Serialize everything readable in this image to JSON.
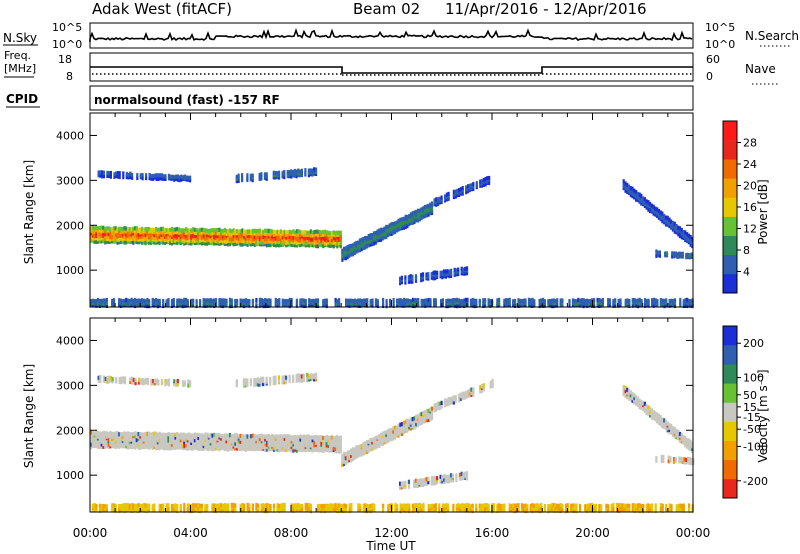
{
  "header": {
    "station": "Adak West (fitACF)",
    "beam": "Beam 02",
    "dates": "11/Apr/2016 - 12/Apr/2016"
  },
  "top_panels": {
    "nsky_label": "N.Sky",
    "nsky_ticks": [
      "10^5",
      "10^0"
    ],
    "nsearch_label": "N.Search",
    "nsearch_ticks": [
      "10^5",
      "10^0"
    ],
    "freq_label": "Freq.",
    "freq_unit": "[MHz]",
    "freq_ticks": [
      "18",
      "8"
    ],
    "nave_label": "Nave",
    "nave_ticks": [
      "60",
      "0"
    ],
    "cpid_label": "CPID",
    "cpid_text": "normalsound (fast) -157 RF"
  },
  "colors": {
    "power": [
      "#1a2fd6",
      "#2f5fb0",
      "#2e8b57",
      "#66c233",
      "#e6c800",
      "#f2a000",
      "#f06a00",
      "#e8281c",
      "#ff1a1a"
    ],
    "velocity": [
      "#1a2fd6",
      "#2f5fb0",
      "#2e8b57",
      "#66c233",
      "#c8c8c0",
      "#e6c800",
      "#f2a000",
      "#f06a00",
      "#e8281c"
    ],
    "ground": "#c8c8c0"
  },
  "chart_data": [
    {
      "type": "heatmap",
      "name": "power",
      "ylabel": "Slant Range [km]",
      "xlabel": "",
      "x_ticks": [
        "00:00",
        "04:00",
        "08:00",
        "12:00",
        "16:00",
        "20:00",
        "00:00"
      ],
      "y_ticks": [
        "1000",
        "2000",
        "3000",
        "4000"
      ],
      "xlim_hours": [
        0,
        24
      ],
      "ylim_km": [
        180,
        4500
      ],
      "colorbar_label": "Power [dB]",
      "colorbar_ticks": [
        "4",
        "8",
        "12",
        "16",
        "20",
        "24",
        "28"
      ],
      "colorbar_range": [
        0,
        32
      ],
      "echo_bands": [
        {
          "t0": 0.0,
          "t1": 10.0,
          "center_start": 1800,
          "center_end": 1700,
          "width": 350,
          "peak_db": 28
        },
        {
          "t0": 10.0,
          "t1": 13.6,
          "center_start": 1350,
          "center_end": 2400,
          "width": 250,
          "peak_db": 10
        },
        {
          "t0": 13.6,
          "t1": 16.0,
          "center_start": 2500,
          "center_end": 3050,
          "width": 150,
          "peak_db": 6
        },
        {
          "t0": 12.3,
          "t1": 15.0,
          "center_start": 780,
          "center_end": 1000,
          "width": 150,
          "peak_db": 6
        },
        {
          "t0": 21.2,
          "t1": 24.0,
          "center_start": 2900,
          "center_end": 1600,
          "width": 200,
          "peak_db": 6
        },
        {
          "t0": 22.5,
          "t1": 24.0,
          "center_start": 1380,
          "center_end": 1320,
          "width": 120,
          "peak_db": 8
        },
        {
          "t0": 0.3,
          "t1": 4.0,
          "center_start": 3150,
          "center_end": 3050,
          "width": 120,
          "peak_db": 6
        },
        {
          "t0": 5.8,
          "t1": 9.0,
          "center_start": 3050,
          "center_end": 3200,
          "width": 150,
          "peak_db": 8
        },
        {
          "t0": 0.0,
          "t1": 24.0,
          "center_start": 280,
          "center_end": 280,
          "width": 160,
          "peak_db": 8
        }
      ]
    },
    {
      "type": "heatmap",
      "name": "velocity",
      "ylabel": "Slant Range [km]",
      "xlabel": "Time UT",
      "x_ticks": [
        "00:00",
        "04:00",
        "08:00",
        "12:00",
        "16:00",
        "20:00",
        "00:00"
      ],
      "y_ticks": [
        "1000",
        "2000",
        "3000",
        "4000"
      ],
      "xlim_hours": [
        0,
        24
      ],
      "ylim_km": [
        180,
        4500
      ],
      "colorbar_label": "Velocity [m s⁻¹]",
      "colorbar_ticks": [
        "200",
        "100",
        "50",
        "15",
        "-15",
        "-50",
        "-100",
        "-200"
      ],
      "colorbar_range": [
        -250,
        250
      ]
    }
  ]
}
